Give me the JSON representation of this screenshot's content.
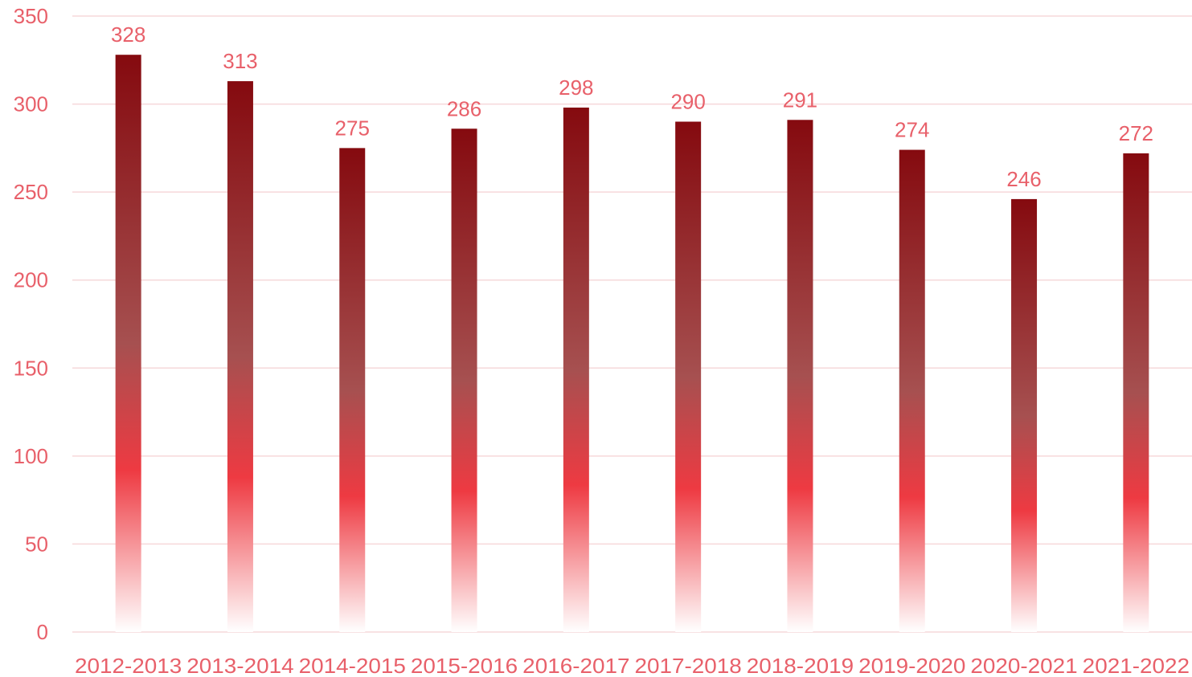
{
  "chart_data": {
    "type": "bar",
    "categories": [
      "2012-2013",
      "2013-2014",
      "2014-2015",
      "2015-2016",
      "2016-2017",
      "2017-2018",
      "2018-2019",
      "2019-2020",
      "2020-2021",
      "2021-2022"
    ],
    "values": [
      328,
      313,
      275,
      286,
      298,
      290,
      291,
      274,
      246,
      272
    ],
    "data_labels": [
      "328",
      "313",
      "275",
      "286",
      "298",
      "290",
      "291",
      "274",
      "246",
      "272"
    ],
    "y_ticks": [
      "0",
      "50",
      "100",
      "150",
      "200",
      "250",
      "300",
      "350"
    ],
    "ylim": [
      0,
      350
    ],
    "grid": true,
    "legend": "none",
    "title": "",
    "xlabel": "",
    "ylabel": ""
  },
  "colors": {
    "text": "#E8606A",
    "grid": "#F6D8DA",
    "bar_top": "#850A0F",
    "bar_mid": "#A65050",
    "bar_bright": "#EE3A42",
    "bar_fade": "#FFFFFF"
  }
}
